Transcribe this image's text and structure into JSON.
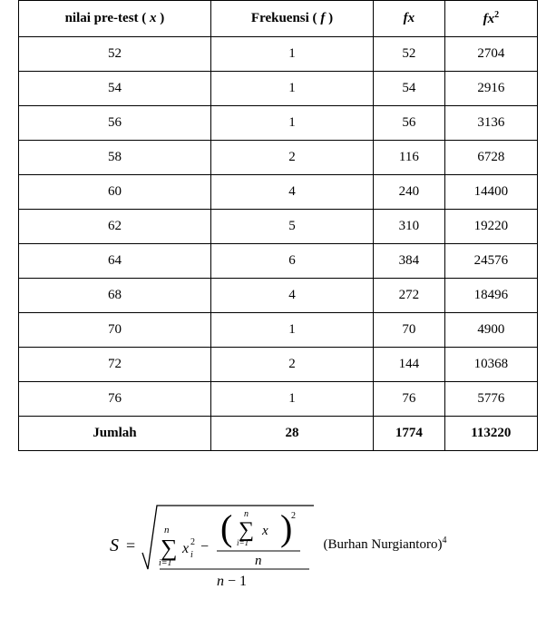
{
  "table": {
    "columns": [
      {
        "label_pre": "nilai pre-test ( ",
        "var": "x",
        "label_post": " )",
        "style": "bold"
      },
      {
        "label_pre": "Frekuensi ( ",
        "var": "f",
        "label_post": " )",
        "style": "bold"
      },
      {
        "label_pre": "",
        "var": "fx",
        "label_post": "",
        "style": "italic"
      },
      {
        "label_pre": "",
        "var": "fx",
        "label_post": "",
        "style": "italic",
        "sup": "2"
      }
    ],
    "rows": [
      [
        "52",
        "1",
        "52",
        "2704"
      ],
      [
        "54",
        "1",
        "54",
        "2916"
      ],
      [
        "56",
        "1",
        "56",
        "3136"
      ],
      [
        "58",
        "2",
        "116",
        "6728"
      ],
      [
        "60",
        "4",
        "240",
        "14400"
      ],
      [
        "62",
        "5",
        "310",
        "19220"
      ],
      [
        "64",
        "6",
        "384",
        "24576"
      ],
      [
        "68",
        "4",
        "272",
        "18496"
      ],
      [
        "70",
        "1",
        "70",
        "4900"
      ],
      [
        "72",
        "2",
        "144",
        "10368"
      ],
      [
        "76",
        "1",
        "76",
        "5776"
      ]
    ],
    "footer": {
      "label": "Jumlah",
      "values": [
        "28",
        "1774",
        "113220"
      ]
    },
    "border_color": "#000000",
    "background_color": "#ffffff",
    "font_size": 15,
    "cell_padding": 10
  },
  "formula": {
    "S_var": "S",
    "equals": "=",
    "sum_lower": "i=1",
    "sum_upper": "n",
    "x_var": "x",
    "x_sub": "i",
    "sq": "2",
    "n_var": "n",
    "denom": "n − 1",
    "font_family": "Times New Roman",
    "text_color": "#000000"
  },
  "citation": {
    "text": "(Burhan Nurgiantoro)",
    "footnote": "4"
  }
}
